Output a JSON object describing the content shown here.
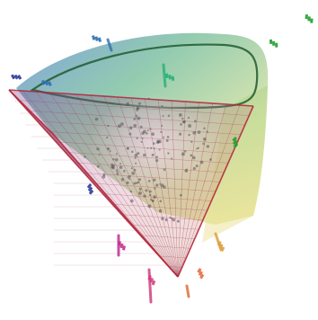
{
  "chart_data": {
    "type": "scatter",
    "title": "",
    "xlabel": "",
    "ylabel": "",
    "zlabel": "",
    "grid": true,
    "legend": "none",
    "projection": "3d",
    "colors": {
      "gamut_top": "#2f9a5a",
      "gamut_left": "#2b5fc0",
      "gamut_right": "#d8d86a",
      "mesh": "#9c3b55",
      "mesh_edge": "#b3263a",
      "locus_outline": "#1f5b30",
      "points_dark": "#555555",
      "outliers": [
        "#2a3a9a",
        "#3070b0",
        "#28b078",
        "#20a030",
        "#c03090",
        "#d04080",
        "#e07040",
        "#e0a040"
      ]
    },
    "surfaces": [
      {
        "name": "spectral-locus-shell",
        "kind": "surface"
      },
      {
        "name": "rgb-gamut-mesh",
        "kind": "wireframe"
      }
    ],
    "points": {
      "interior_cluster_count": 120,
      "outliers": [
        {
          "label": "",
          "color_index": 0
        },
        {
          "label": "",
          "color_index": 1
        },
        {
          "label": "",
          "color_index": 2
        },
        {
          "label": "",
          "color_index": 3
        },
        {
          "label": "",
          "color_index": 4
        },
        {
          "label": "",
          "color_index": 5
        },
        {
          "label": "",
          "color_index": 6
        },
        {
          "label": "",
          "color_index": 7
        }
      ]
    }
  }
}
